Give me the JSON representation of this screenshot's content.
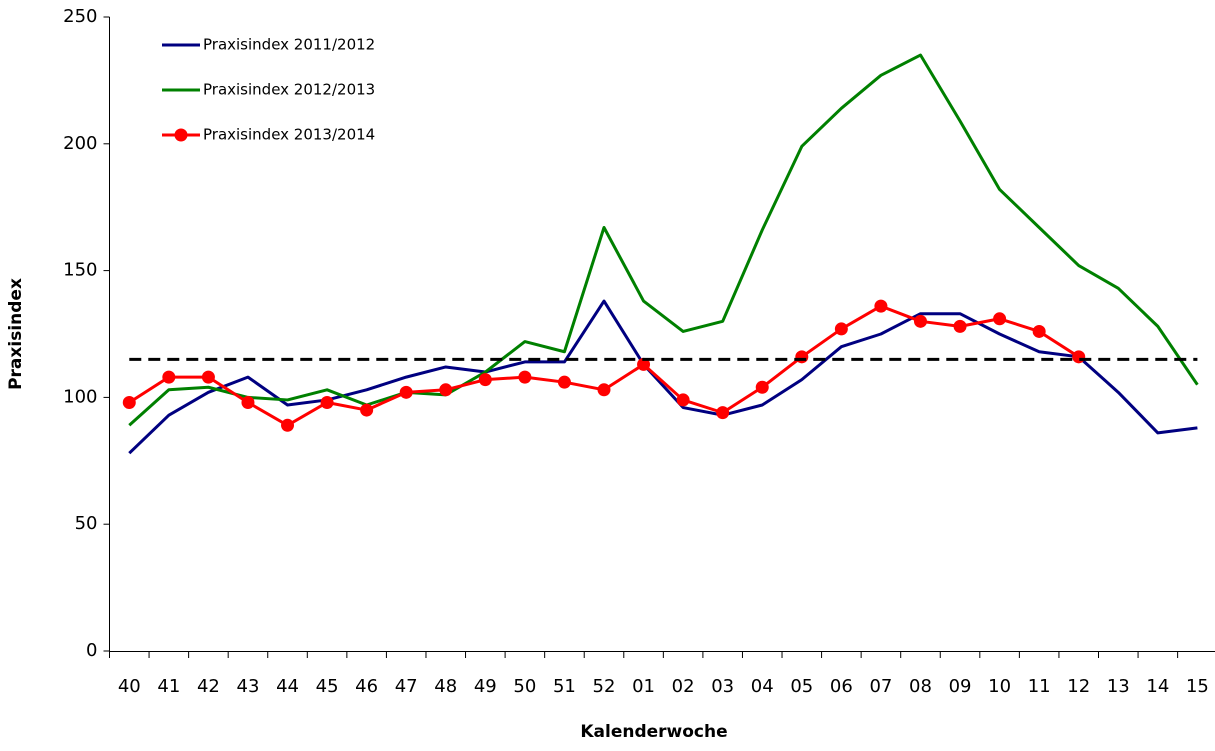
{
  "chart_data": {
    "type": "line",
    "x_label": "Kalenderwoche",
    "y_label": "Praxisindex",
    "categories": [
      "40",
      "41",
      "42",
      "43",
      "44",
      "45",
      "46",
      "47",
      "48",
      "49",
      "50",
      "51",
      "52",
      "01",
      "02",
      "03",
      "04",
      "05",
      "06",
      "07",
      "08",
      "09",
      "10",
      "11",
      "12",
      "13",
      "14",
      "15"
    ],
    "series": [
      {
        "name": "Praxisindex 2011/2012",
        "color": "#000080",
        "markers": false,
        "values": [
          78,
          93,
          102,
          108,
          97,
          99,
          103,
          108,
          112,
          110,
          114,
          114,
          138,
          113,
          96,
          93,
          97,
          107,
          120,
          125,
          133,
          133,
          125,
          118,
          116,
          102,
          86,
          88
        ]
      },
      {
        "name": "Praxisindex 2012/2013",
        "color": "#008000",
        "markers": false,
        "values": [
          89,
          103,
          104,
          100,
          99,
          103,
          97,
          102,
          101,
          110,
          122,
          118,
          167,
          138,
          126,
          130,
          166,
          199,
          214,
          227,
          235,
          209,
          182,
          167,
          152,
          143,
          128,
          105
        ]
      },
      {
        "name": "Praxisindex 2013/2014",
        "color": "#ff0000",
        "markers": true,
        "values": [
          98,
          108,
          108,
          98,
          89,
          98,
          95,
          102,
          103,
          107,
          108,
          106,
          103,
          113,
          99,
          94,
          104,
          116,
          127,
          136,
          130,
          128,
          131,
          126,
          116,
          null,
          null,
          null
        ]
      }
    ],
    "reference_line": 115,
    "ylim": [
      0,
      250
    ],
    "yticks": [
      0,
      50,
      100,
      150,
      200,
      250
    ],
    "legend": "top-left"
  }
}
